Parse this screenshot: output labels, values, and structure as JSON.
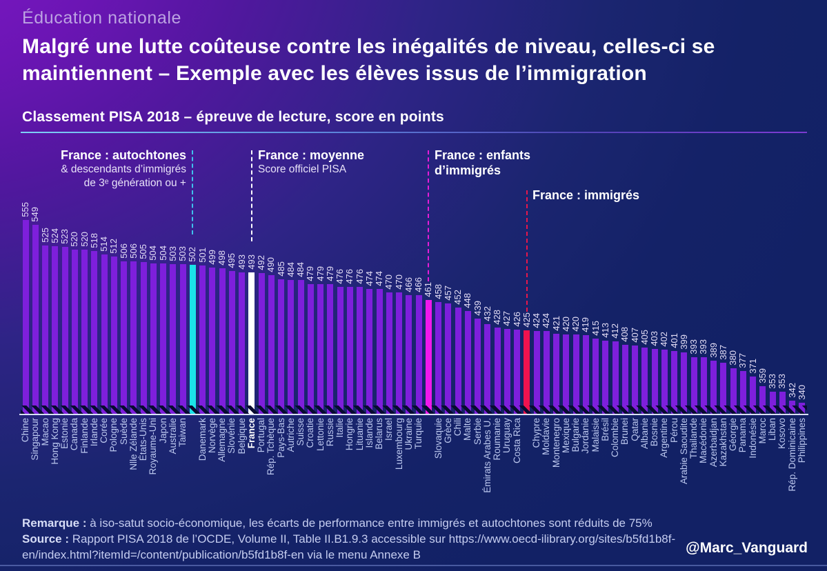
{
  "header": {
    "kicker": "Éducation nationale",
    "title_line1": "Malgré une lutte coûteuse contre les inégalités de niveau, celles-ci se",
    "title_line2": "maintiennent – Exemple avec les élèves issus de l’immigration",
    "subtitle": "Classement PISA 2018 – épreuve de lecture, score en points"
  },
  "annotations": [
    {
      "id": "autochtones",
      "bar_index": 17,
      "line_color": "#3FC1EC",
      "line1": "France : autochtones",
      "line2": "& descendants d’immigrés",
      "line3": "de 3ᵉ génération ou +"
    },
    {
      "id": "moyenne",
      "bar_index": 23,
      "line_color": "#FFFFFF",
      "line1": "France : moyenne",
      "line2": "Score officiel PISA"
    },
    {
      "id": "enfants",
      "bar_index": 41,
      "line_color": "#E81CD8",
      "line1": "France : enfants",
      "line2": "d’immigrés"
    },
    {
      "id": "immigres",
      "bar_index": 51,
      "line_color": "#E8174B",
      "line1": "France : immigrés"
    }
  ],
  "colors": {
    "bar": "#7E1FDC",
    "bar_autochtones": "#1BE3E8",
    "bar_moyenne": "#FFFFFF",
    "bar_enfants": "#F018EC",
    "bar_immigres": "#F0134E"
  },
  "chart_data": {
    "type": "bar",
    "title": "Classement PISA 2018 – épreuve de lecture, score en points",
    "ylabel": "score en points",
    "ylim": [
      326,
      560
    ],
    "grid": false,
    "bars": [
      {
        "label": "Chine",
        "value": 555
      },
      {
        "label": "Singapour",
        "value": 549
      },
      {
        "label": "Macao",
        "value": 525
      },
      {
        "label": "Hong Kong",
        "value": 524
      },
      {
        "label": "Estonie",
        "value": 523
      },
      {
        "label": "Canada",
        "value": 520
      },
      {
        "label": "Finlande",
        "value": 520
      },
      {
        "label": "Irlande",
        "value": 518
      },
      {
        "label": "Corée",
        "value": 514
      },
      {
        "label": "Pologne",
        "value": 512
      },
      {
        "label": "Suède",
        "value": 506
      },
      {
        "label": "Nlle Zélande",
        "value": 506
      },
      {
        "label": "États-Unis",
        "value": 505
      },
      {
        "label": "Royaume-Uni",
        "value": 504
      },
      {
        "label": "Japon",
        "value": 504
      },
      {
        "label": "Australie",
        "value": 503
      },
      {
        "label": "Taiwan",
        "value": 503
      },
      {
        "label": "",
        "value": 502,
        "highlight": "autochtones"
      },
      {
        "label": "Danemark",
        "value": 501
      },
      {
        "label": "Norvège",
        "value": 499
      },
      {
        "label": "Allemagne",
        "value": 498
      },
      {
        "label": "Slovénie",
        "value": 495
      },
      {
        "label": "Belgique",
        "value": 493
      },
      {
        "label": "France",
        "value": 493,
        "highlight": "moyenne"
      },
      {
        "label": "Portugal",
        "value": 492
      },
      {
        "label": "Rép. Tchèque",
        "value": 490
      },
      {
        "label": "Pays-Bas",
        "value": 485
      },
      {
        "label": "Autriche",
        "value": 484
      },
      {
        "label": "Suisse",
        "value": 484
      },
      {
        "label": "Croatie",
        "value": 479
      },
      {
        "label": "Lettonie",
        "value": 479
      },
      {
        "label": "Russie",
        "value": 479
      },
      {
        "label": "Italie",
        "value": 476
      },
      {
        "label": "Hongrie",
        "value": 476
      },
      {
        "label": "Lituanie",
        "value": 476
      },
      {
        "label": "Islande",
        "value": 474
      },
      {
        "label": "Belarus",
        "value": 474
      },
      {
        "label": "Israel",
        "value": 470
      },
      {
        "label": "Luxembourg",
        "value": 470
      },
      {
        "label": "Ukraine",
        "value": 466
      },
      {
        "label": "Turquie",
        "value": 466
      },
      {
        "label": "",
        "value": 461,
        "highlight": "enfants"
      },
      {
        "label": "Slovaquie",
        "value": 458
      },
      {
        "label": "Grèce",
        "value": 457
      },
      {
        "label": "Chili",
        "value": 452
      },
      {
        "label": "Malte",
        "value": 448
      },
      {
        "label": "Serbie",
        "value": 439
      },
      {
        "label": "Émirats Arabes U.",
        "value": 432
      },
      {
        "label": "Roumanie",
        "value": 428
      },
      {
        "label": "Uruguay",
        "value": 427
      },
      {
        "label": "Costa Rica",
        "value": 426
      },
      {
        "label": "",
        "value": 425,
        "highlight": "immigres"
      },
      {
        "label": "Chypre",
        "value": 424
      },
      {
        "label": "Moldavie",
        "value": 424
      },
      {
        "label": "Montenegro",
        "value": 421
      },
      {
        "label": "Mexique",
        "value": 420
      },
      {
        "label": "Bulgarie",
        "value": 420
      },
      {
        "label": "Jordanie",
        "value": 419
      },
      {
        "label": "Malaisie",
        "value": 415
      },
      {
        "label": "Brésil",
        "value": 413
      },
      {
        "label": "Colombie",
        "value": 412
      },
      {
        "label": "Brunei",
        "value": 408
      },
      {
        "label": "Qatar",
        "value": 407
      },
      {
        "label": "Albanie",
        "value": 405
      },
      {
        "label": "Bosnie",
        "value": 403
      },
      {
        "label": "Argentine",
        "value": 402
      },
      {
        "label": "Pérou",
        "value": 401
      },
      {
        "label": "Arabie Saoudite",
        "value": 399
      },
      {
        "label": "Thailande",
        "value": 393
      },
      {
        "label": "Macédonie",
        "value": 393
      },
      {
        "label": "Azerbaidjan",
        "value": 389
      },
      {
        "label": "Kazakhstan",
        "value": 387
      },
      {
        "label": "Géorgie",
        "value": 380
      },
      {
        "label": "Panama",
        "value": 377
      },
      {
        "label": "Indonésie",
        "value": 371
      },
      {
        "label": "Maroc",
        "value": 359
      },
      {
        "label": "Liban",
        "value": 353
      },
      {
        "label": "Kosovo",
        "value": 353
      },
      {
        "label": "Rép. Dominicaine",
        "value": 342
      },
      {
        "label": "Philippines",
        "value": 340
      }
    ]
  },
  "footer": {
    "remarque_label": "Remarque :",
    "remarque_text": " à iso-satut socio-économique, les écarts de performance entre immigrés et autochtones sont réduits de 75%",
    "source_label": "Source :",
    "source_line1": " Rapport PISA 2018 de l’OCDE, Volume II, Table II.B1.9.3 accessible sur https://www.oecd-ilibrary.org/sites/b5fd1b8f-",
    "source_line2": "en/index.html?itemId=/content/publication/b5fd1b8f-en via le menu Annexe B",
    "credit": "@Marc_Vanguard"
  }
}
